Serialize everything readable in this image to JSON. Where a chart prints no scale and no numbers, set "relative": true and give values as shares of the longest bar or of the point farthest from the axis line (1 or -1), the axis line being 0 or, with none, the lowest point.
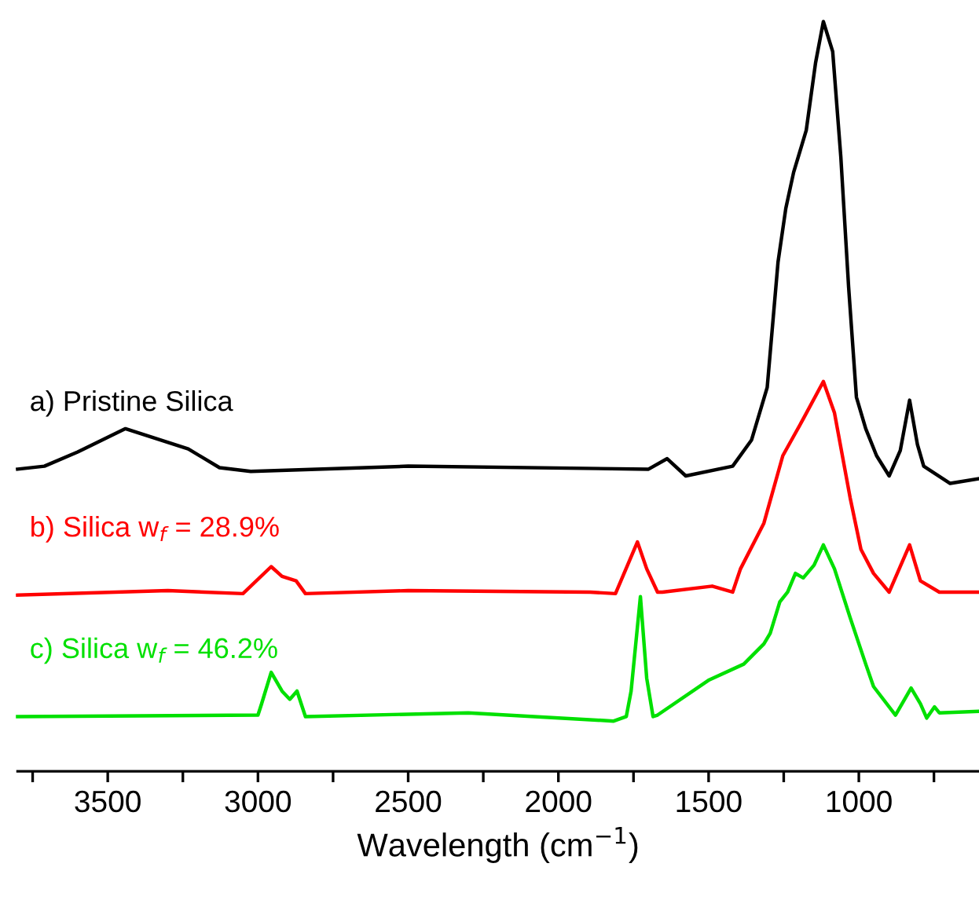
{
  "chart_data": {
    "type": "line",
    "relative": true,
    "xlabel": "Wavelength (cm$^{−1}$)",
    "xlim": [
      3800,
      600
    ],
    "xticks": [
      {
        "value": 3750,
        "label": null
      },
      3500,
      {
        "value": 3250,
        "label": null
      },
      3000,
      {
        "value": 2750,
        "label": null
      },
      2500,
      {
        "value": 2250,
        "label": null
      },
      2000,
      {
        "value": 1750,
        "label": null
      },
      1500,
      {
        "value": 1250,
        "label": null
      },
      1000,
      {
        "value": 750,
        "label": null
      }
    ],
    "grid": false,
    "legend": false,
    "marker": "none",
    "line_style": "solid",
    "series": [
      {
        "name": "a) Pristine Silica",
        "color": "#000000",
        "x": [
          3800,
          3711,
          3600,
          3441,
          3232,
          3128,
          3024,
          2500,
          1700,
          1638,
          1576,
          1420,
          1357,
          1305,
          1269,
          1243,
          1217,
          1175,
          1144,
          1118,
          1087,
          1060,
          1034,
          1008,
          977,
          941,
          899,
          862,
          831,
          805,
          784,
          696,
          605
        ],
        "values": [
          0.403,
          0.407,
          0.426,
          0.457,
          0.43,
          0.405,
          0.4,
          0.407,
          0.403,
          0.417,
          0.394,
          0.407,
          0.442,
          0.512,
          0.679,
          0.751,
          0.799,
          0.855,
          0.945,
          1.0,
          0.96,
          0.82,
          0.646,
          0.499,
          0.457,
          0.421,
          0.394,
          0.428,
          0.495,
          0.436,
          0.407,
          0.384,
          0.39
        ]
      },
      {
        "name": "b) Silica w$_{f}$ = 28.9%",
        "color": "#ff0000",
        "x": [
          3800,
          3300,
          3050,
          2956,
          2920,
          2873,
          2842,
          2500,
          1894,
          1810,
          1737,
          1706,
          1670,
          1654,
          1488,
          1420,
          1394,
          1316,
          1253,
          1185,
          1118,
          1081,
          1029,
          993,
          951,
          899,
          831,
          795,
          732,
          605
        ],
        "values": [
          0.235,
          0.241,
          0.237,
          0.273,
          0.26,
          0.254,
          0.237,
          0.241,
          0.239,
          0.237,
          0.306,
          0.27,
          0.239,
          0.239,
          0.247,
          0.239,
          0.27,
          0.331,
          0.421,
          0.47,
          0.52,
          0.478,
          0.365,
          0.296,
          0.264,
          0.239,
          0.302,
          0.254,
          0.239,
          0.239
        ]
      },
      {
        "name": "c) Silica w$_{f}$ = 46.2%",
        "color": "#00e000",
        "x": [
          3800,
          3000,
          2988,
          2956,
          2920,
          2894,
          2870,
          2842,
          2300,
          1816,
          1774,
          1758,
          1727,
          1706,
          1685,
          1670,
          1498,
          1383,
          1316,
          1295,
          1263,
          1237,
          1211,
          1185,
          1149,
          1118,
          1081,
          1029,
          977,
          951,
          878,
          826,
          795,
          774,
          748,
          732,
          605
        ],
        "values": [
          0.073,
          0.075,
          0.09,
          0.132,
          0.107,
          0.096,
          0.107,
          0.073,
          0.078,
          0.067,
          0.073,
          0.107,
          0.233,
          0.124,
          0.073,
          0.075,
          0.122,
          0.143,
          0.17,
          0.184,
          0.226,
          0.239,
          0.264,
          0.258,
          0.275,
          0.302,
          0.27,
          0.205,
          0.143,
          0.113,
          0.075,
          0.111,
          0.09,
          0.071,
          0.086,
          0.078,
          0.08
        ]
      }
    ]
  }
}
